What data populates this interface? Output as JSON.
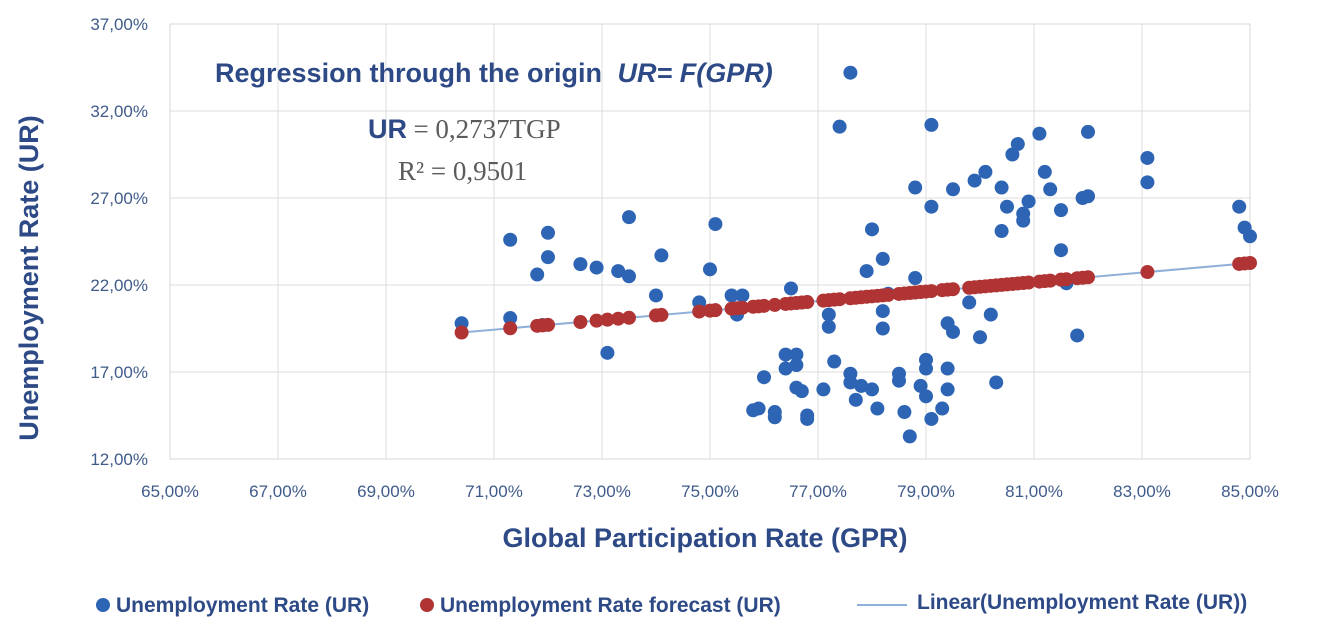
{
  "chart_data": {
    "type": "scatter",
    "title": "Regression through the origin",
    "title_formula": "UR= F(GPR)",
    "equation_label": "UR",
    "equation_value": "= 0,2737TGP",
    "r_squared": "R² = 0,9501",
    "slope": 0.2737,
    "xlabel": "Global Participation Rate (GPR)",
    "ylabel": "Unemployment Rate (UR)",
    "xlim": [
      65,
      85
    ],
    "ylim": [
      12,
      37
    ],
    "x_ticks": [
      "65,00%",
      "67,00%",
      "69,00%",
      "71,00%",
      "73,00%",
      "75,00%",
      "77,00%",
      "79,00%",
      "81,00%",
      "83,00%",
      "85,00%"
    ],
    "y_ticks": [
      "12,00%",
      "17,00%",
      "22,00%",
      "27,00%",
      "32,00%",
      "37,00%"
    ],
    "x_tick_values": [
      65,
      67,
      69,
      71,
      73,
      75,
      77,
      79,
      81,
      83,
      85
    ],
    "y_tick_values": [
      12,
      17,
      22,
      27,
      32,
      37
    ],
    "grid": true,
    "legend_position": "bottom",
    "colors": {
      "actual": "#2e64b4",
      "forecast": "#b03434",
      "trend": "#8fb1d9",
      "grid": "#dcdcdc",
      "text": "#2d4a86"
    },
    "series": [
      {
        "name": "Unemployment Rate (UR)",
        "kind": "points",
        "points": [
          [
            70.4,
            19.8
          ],
          [
            71.3,
            24.6
          ],
          [
            71.3,
            20.1
          ],
          [
            71.8,
            22.6
          ],
          [
            72.0,
            25.0
          ],
          [
            72.0,
            23.6
          ],
          [
            71.9,
            19.7
          ],
          [
            72.6,
            23.2
          ],
          [
            72.9,
            23.0
          ],
          [
            73.1,
            18.1
          ],
          [
            73.3,
            22.8
          ],
          [
            73.5,
            22.5
          ],
          [
            73.5,
            25.9
          ],
          [
            74.0,
            21.4
          ],
          [
            74.1,
            23.7
          ],
          [
            74.8,
            21.0
          ],
          [
            75.0,
            22.9
          ],
          [
            75.1,
            25.5
          ],
          [
            75.4,
            21.4
          ],
          [
            75.5,
            20.3
          ],
          [
            75.6,
            21.4
          ],
          [
            75.8,
            14.8
          ],
          [
            75.9,
            14.9
          ],
          [
            76.0,
            16.7
          ],
          [
            76.2,
            14.4
          ],
          [
            76.2,
            14.7
          ],
          [
            76.4,
            18.0
          ],
          [
            76.4,
            17.2
          ],
          [
            76.5,
            21.8
          ],
          [
            76.6,
            18.0
          ],
          [
            76.6,
            17.4
          ],
          [
            76.6,
            16.1
          ],
          [
            76.7,
            15.9
          ],
          [
            76.8,
            14.5
          ],
          [
            76.8,
            14.3
          ],
          [
            77.1,
            16.0
          ],
          [
            77.2,
            19.6
          ],
          [
            77.2,
            20.3
          ],
          [
            77.3,
            17.6
          ],
          [
            77.4,
            31.1
          ],
          [
            77.6,
            34.2
          ],
          [
            77.6,
            16.9
          ],
          [
            77.6,
            16.4
          ],
          [
            77.7,
            15.4
          ],
          [
            77.8,
            16.2
          ],
          [
            77.9,
            22.8
          ],
          [
            78.0,
            16.0
          ],
          [
            78.0,
            25.2
          ],
          [
            78.1,
            14.9
          ],
          [
            78.2,
            19.5
          ],
          [
            78.2,
            20.5
          ],
          [
            78.2,
            23.5
          ],
          [
            78.3,
            21.5
          ],
          [
            78.5,
            16.9
          ],
          [
            78.5,
            16.5
          ],
          [
            78.6,
            14.7
          ],
          [
            78.7,
            13.3
          ],
          [
            78.8,
            22.4
          ],
          [
            78.8,
            27.6
          ],
          [
            78.9,
            16.2
          ],
          [
            79.0,
            17.7
          ],
          [
            79.0,
            17.2
          ],
          [
            79.0,
            15.6
          ],
          [
            79.1,
            14.3
          ],
          [
            79.1,
            26.5
          ],
          [
            79.1,
            31.2
          ],
          [
            79.3,
            14.9
          ],
          [
            79.4,
            16.0
          ],
          [
            79.4,
            17.2
          ],
          [
            79.4,
            19.8
          ],
          [
            79.5,
            19.3
          ],
          [
            79.5,
            27.5
          ],
          [
            79.8,
            21.0
          ],
          [
            79.9,
            28.0
          ],
          [
            80.0,
            19.0
          ],
          [
            80.1,
            28.5
          ],
          [
            80.2,
            20.3
          ],
          [
            80.3,
            16.4
          ],
          [
            80.4,
            27.6
          ],
          [
            80.4,
            25.1
          ],
          [
            80.5,
            26.5
          ],
          [
            80.6,
            29.5
          ],
          [
            80.7,
            30.1
          ],
          [
            80.8,
            26.1
          ],
          [
            80.8,
            25.7
          ],
          [
            80.9,
            26.8
          ],
          [
            81.1,
            30.7
          ],
          [
            81.2,
            28.5
          ],
          [
            81.3,
            27.5
          ],
          [
            81.5,
            26.3
          ],
          [
            81.5,
            24.0
          ],
          [
            81.6,
            22.1
          ],
          [
            81.8,
            19.1
          ],
          [
            81.9,
            27.0
          ],
          [
            82.0,
            30.8
          ],
          [
            82.0,
            27.1
          ],
          [
            83.1,
            29.3
          ],
          [
            83.1,
            27.9
          ],
          [
            84.8,
            26.5
          ],
          [
            84.9,
            25.3
          ],
          [
            85.0,
            24.8
          ]
        ]
      },
      {
        "name": "Unemployment Rate forecast (UR)",
        "kind": "forecast",
        "x": [
          70.4,
          71.3,
          71.8,
          71.9,
          72.0,
          72.6,
          72.9,
          73.1,
          73.3,
          73.5,
          74.0,
          74.1,
          74.8,
          75.0,
          75.1,
          75.4,
          75.5,
          75.6,
          75.8,
          75.9,
          76.0,
          76.2,
          76.4,
          76.5,
          76.6,
          76.7,
          76.8,
          77.1,
          77.2,
          77.3,
          77.4,
          77.6,
          77.7,
          77.8,
          77.9,
          78.0,
          78.1,
          78.2,
          78.3,
          78.5,
          78.6,
          78.7,
          78.8,
          78.9,
          79.0,
          79.1,
          79.3,
          79.4,
          79.5,
          79.8,
          79.9,
          80.0,
          80.1,
          80.2,
          80.3,
          80.4,
          80.5,
          80.6,
          80.7,
          80.8,
          80.9,
          81.1,
          81.2,
          81.3,
          81.5,
          81.6,
          81.8,
          81.9,
          82.0,
          83.1,
          84.8,
          84.9,
          85.0
        ]
      },
      {
        "name": "Linear(Unemployment Rate (UR))",
        "kind": "trendline",
        "x_range": [
          70.4,
          85.0
        ]
      }
    ]
  }
}
